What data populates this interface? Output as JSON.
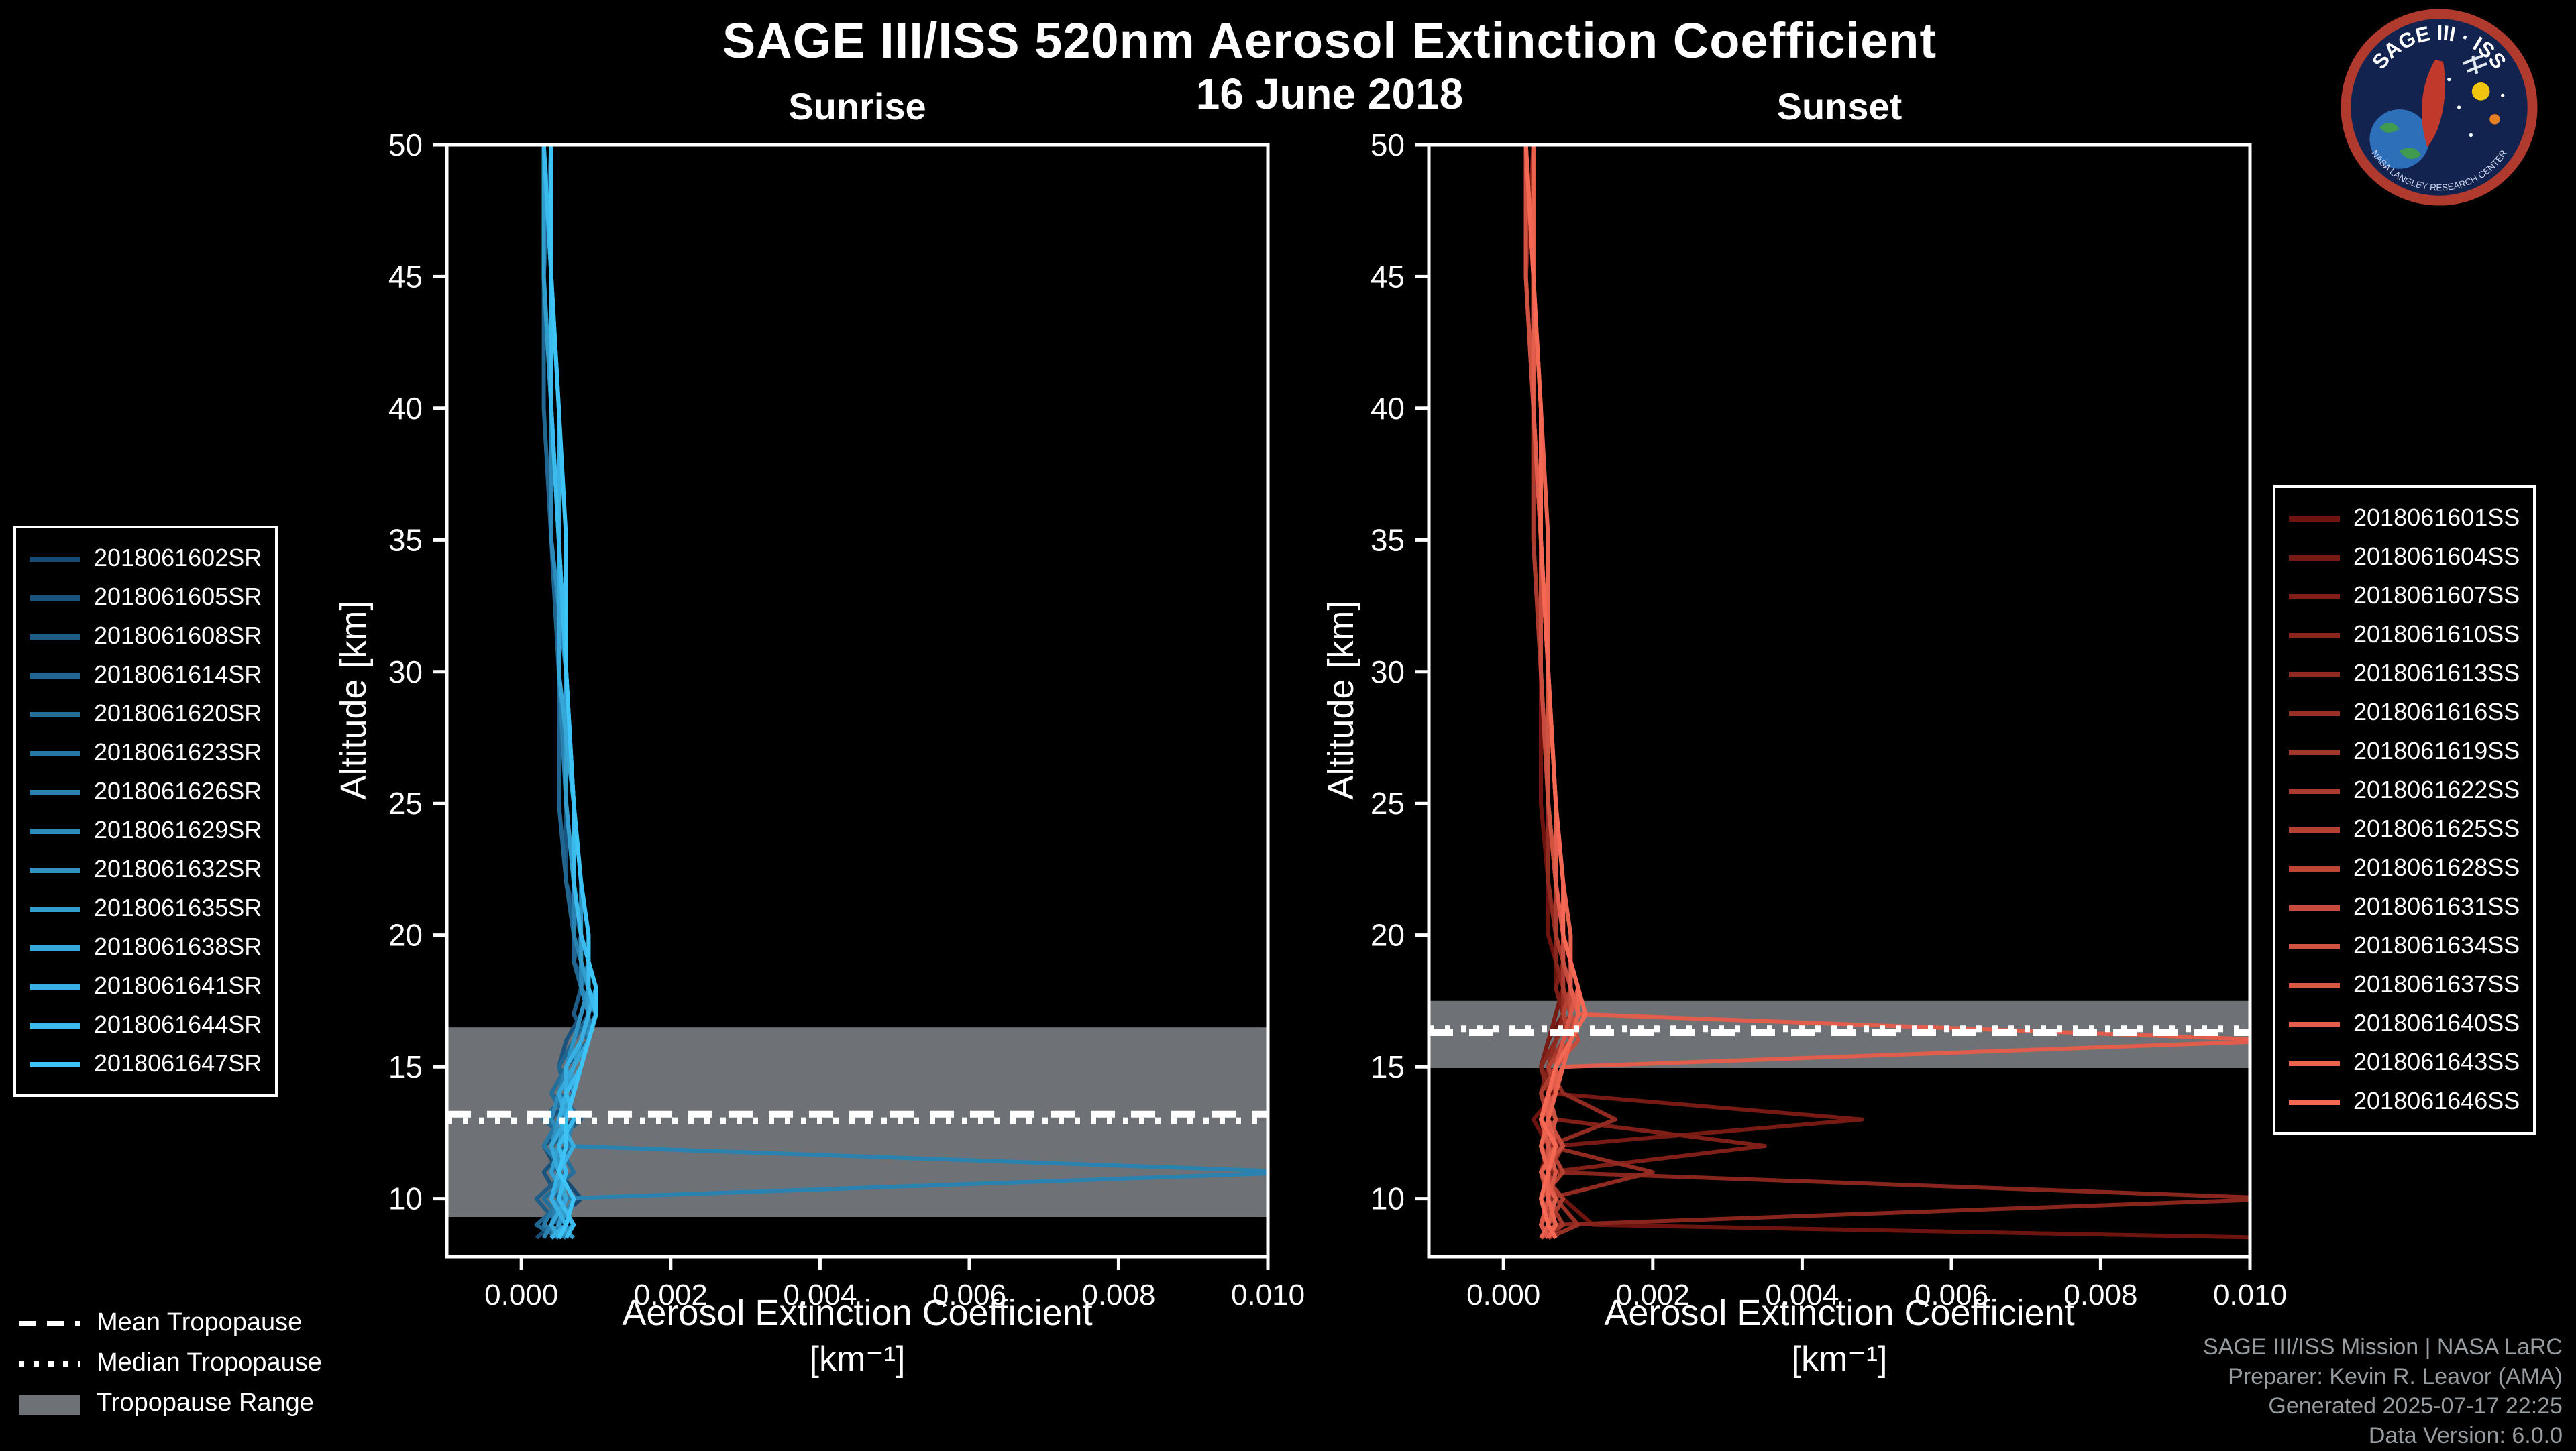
{
  "header": {
    "title": "SAGE III/ISS 520nm Aerosol Extinction Coefficient",
    "date": "16 June 2018"
  },
  "logo": {
    "title": "SAGE III · ISS",
    "subtitle": "NASA LANGLEY RESEARCH CENTER"
  },
  "tropopause_legend": {
    "mean": "Mean Tropopause",
    "median": "Median Tropopause",
    "range": "Tropopause Range"
  },
  "credits": {
    "line1": "SAGE III/ISS Mission | NASA LaRC",
    "line2": "Preparer: Kevin R. Leavor (AMA)",
    "line3": "Generated 2025-07-17 22:25",
    "line4": "Data Version: 6.0.0"
  },
  "chart_data": {
    "type": "line",
    "xlabel": "Aerosol Extinction Coefficient",
    "xunit": "[km⁻¹]",
    "ylabel": "Altitude [km]",
    "xlim": [
      -0.001,
      0.01
    ],
    "ylim": [
      7.8,
      50
    ],
    "xticks": [
      "0.000",
      "0.002",
      "0.004",
      "0.006",
      "0.008",
      "0.010"
    ],
    "yticks": [
      10,
      15,
      20,
      25,
      30,
      35,
      40,
      45,
      50
    ],
    "band_color": "#6e7276",
    "tropopause_line_color": "#ffffff",
    "value_scale": 0.0001,
    "altitudes_km": [
      50,
      45,
      40,
      35,
      30,
      25,
      22,
      20,
      19,
      18,
      17,
      16,
      15,
      14,
      13,
      12,
      11,
      10,
      9,
      8.5
    ],
    "panels": [
      {
        "id": "sunrise",
        "title": "Sunrise",
        "tropopause": {
          "mean_km": 13.2,
          "median_km": 12.95,
          "range_km": [
            9.3,
            16.5
          ]
        },
        "series": [
          {
            "name": "2018061602SR",
            "color": "#174a73",
            "values": [
              3,
              3,
              4,
              4,
              5,
              6,
              7,
              7,
              8,
              8,
              9,
              8,
              6,
              4,
              7,
              3,
              5,
              8,
              4,
              2
            ]
          },
          {
            "name": "2018061605SR",
            "color": "#1a537d",
            "values": [
              3,
              4,
              4,
              5,
              5,
              6,
              6,
              8,
              7,
              9,
              8,
              6,
              5,
              7,
              4,
              6,
              3,
              5,
              7,
              4
            ]
          },
          {
            "name": "2018061608SR",
            "color": "#1d5d87",
            "values": [
              4,
              3,
              4,
              4,
              6,
              6,
              7,
              7,
              8,
              8,
              7,
              9,
              6,
              5,
              8,
              4,
              6,
              2,
              5,
              6
            ]
          },
          {
            "name": "2018061614SR",
            "color": "#206691",
            "values": [
              3,
              3,
              3,
              4,
              5,
              5,
              6,
              7,
              7,
              8,
              9,
              7,
              5,
              6,
              3,
              7,
              4,
              6,
              2,
              5
            ]
          },
          {
            "name": "2018061620SR",
            "color": "#236f9c",
            "values": [
              3,
              4,
              4,
              5,
              6,
              6,
              7,
              8,
              8,
              9,
              8,
              7,
              6,
              4,
              6,
              5,
              7,
              3,
              6,
              4
            ]
          },
          {
            "name": "2018061623SR",
            "color": "#2679a6",
            "values": [
              4,
              4,
              5,
              5,
              6,
              7,
              7,
              8,
              9,
              8,
              10,
              8,
              7,
              6,
              5,
              3,
              6,
              5,
              3,
              6
            ]
          },
          {
            "name": "2018061626SR",
            "color": "#2982b0",
            "values": [
              3,
              3,
              4,
              5,
              5,
              6,
              7,
              7,
              8,
              9,
              9,
              8,
              6,
              5,
              7,
              6,
              105,
              5,
              4,
              3
            ]
          },
          {
            "name": "2018061629SR",
            "color": "#2c8bba",
            "values": [
              3,
              4,
              4,
              4,
              6,
              6,
              7,
              8,
              8,
              8,
              9,
              9,
              7,
              5,
              4,
              6,
              5,
              7,
              5,
              4
            ]
          },
          {
            "name": "2018061632SR",
            "color": "#2f94c4",
            "values": [
              4,
              4,
              5,
              5,
              6,
              7,
              8,
              8,
              9,
              9,
              8,
              7,
              6,
              7,
              5,
              4,
              6,
              4,
              7,
              5
            ]
          },
          {
            "name": "2018061635SR",
            "color": "#329ece",
            "values": [
              3,
              3,
              4,
              5,
              6,
              6,
              7,
              8,
              8,
              9,
              9,
              8,
              7,
              6,
              6,
              5,
              4,
              6,
              5,
              7
            ]
          },
          {
            "name": "2018061638SR",
            "color": "#35a7d9",
            "values": [
              3,
              4,
              4,
              5,
              5,
              7,
              7,
              8,
              9,
              9,
              10,
              9,
              7,
              5,
              6,
              4,
              5,
              6,
              4,
              5
            ]
          },
          {
            "name": "2018061641SR",
            "color": "#38b0e3",
            "values": [
              4,
              4,
              5,
              5,
              6,
              7,
              8,
              9,
              9,
              10,
              9,
              8,
              6,
              6,
              5,
              7,
              5,
              4,
              6,
              4
            ]
          },
          {
            "name": "2018061644SR",
            "color": "#3bbaed",
            "values": [
              3,
              4,
              4,
              5,
              6,
              7,
              7,
              8,
              9,
              9,
              10,
              9,
              8,
              6,
              7,
              5,
              6,
              5,
              7,
              6
            ]
          },
          {
            "name": "2018061647SR",
            "color": "#3ec3f7",
            "values": [
              4,
              4,
              5,
              6,
              6,
              7,
              8,
              9,
              9,
              10,
              10,
              9,
              8,
              7,
              6,
              6,
              5,
              7,
              6,
              5
            ]
          }
        ]
      },
      {
        "id": "sunset",
        "title": "Sunset",
        "tropopause": {
          "mean_km": 16.3,
          "median_km": 16.45,
          "range_km": [
            14.95,
            17.5
          ]
        },
        "series": [
          {
            "name": "2018061601SS",
            "color": "#6d140e",
            "values": [
              3,
              3,
              4,
              4,
              5,
              5,
              6,
              6,
              7,
              7,
              8,
              6,
              5,
              7,
              4,
              6,
              5,
              8,
              12,
              105
            ]
          },
          {
            "name": "2018061604SS",
            "color": "#761a13",
            "values": [
              3,
              3,
              4,
              4,
              5,
              6,
              6,
              7,
              7,
              8,
              7,
              6,
              5,
              6,
              48,
              7,
              5,
              6,
              8,
              6
            ]
          },
          {
            "name": "2018061607SS",
            "color": "#7f1f17",
            "values": [
              4,
              3,
              4,
              5,
              5,
              6,
              6,
              7,
              8,
              7,
              8,
              7,
              6,
              5,
              7,
              35,
              6,
              5,
              7,
              5
            ]
          },
          {
            "name": "2018061610SS",
            "color": "#88251c",
            "values": [
              3,
              4,
              4,
              4,
              5,
              6,
              7,
              7,
              7,
              8,
              8,
              7,
              5,
              6,
              5,
              7,
              6,
              105,
              7,
              6
            ]
          },
          {
            "name": "2018061613SS",
            "color": "#912a21",
            "values": [
              3,
              3,
              4,
              5,
              5,
              6,
              6,
              7,
              8,
              8,
              9,
              7,
              6,
              8,
              15,
              6,
              20,
              6,
              5,
              7
            ]
          },
          {
            "name": "2018061616SS",
            "color": "#9a3025",
            "values": [
              3,
              4,
              4,
              5,
              6,
              6,
              7,
              7,
              8,
              8,
              8,
              9,
              7,
              6,
              5,
              8,
              6,
              7,
              10,
              6
            ]
          },
          {
            "name": "2018061619SS",
            "color": "#a3362a",
            "values": [
              4,
              4,
              4,
              5,
              5,
              6,
              7,
              8,
              8,
              9,
              9,
              8,
              6,
              7,
              6,
              5,
              7,
              6,
              8,
              5
            ]
          },
          {
            "name": "2018061622SS",
            "color": "#ac3b2f",
            "values": [
              3,
              3,
              4,
              4,
              5,
              6,
              7,
              7,
              8,
              8,
              9,
              8,
              7,
              5,
              6,
              7,
              5,
              8,
              6,
              7
            ]
          },
          {
            "name": "2018061625SS",
            "color": "#b54133",
            "values": [
              3,
              4,
              4,
              5,
              6,
              6,
              7,
              8,
              8,
              9,
              8,
              9,
              6,
              7,
              5,
              6,
              8,
              5,
              7,
              6
            ]
          },
          {
            "name": "2018061628SS",
            "color": "#be4638",
            "values": [
              4,
              4,
              5,
              5,
              6,
              7,
              7,
              8,
              9,
              9,
              10,
              8,
              7,
              6,
              7,
              5,
              6,
              7,
              5,
              6
            ]
          },
          {
            "name": "2018061631SS",
            "color": "#c74c3d",
            "values": [
              3,
              4,
              4,
              5,
              5,
              6,
              7,
              8,
              8,
              9,
              9,
              10,
              7,
              6,
              6,
              8,
              5,
              6,
              7,
              5
            ]
          },
          {
            "name": "2018061634SS",
            "color": "#d05241",
            "values": [
              3,
              3,
              4,
              5,
              6,
              6,
              7,
              8,
              9,
              9,
              10,
              9,
              8,
              6,
              7,
              6,
              6,
              5,
              6,
              7
            ]
          },
          {
            "name": "2018061637SS",
            "color": "#d95746",
            "values": [
              4,
              4,
              5,
              5,
              6,
              7,
              8,
              8,
              9,
              10,
              9,
              8,
              7,
              7,
              5,
              6,
              7,
              6,
              5,
              6
            ]
          },
          {
            "name": "2018061640SS",
            "color": "#e25d4b",
            "values": [
              3,
              4,
              4,
              5,
              6,
              7,
              7,
              8,
              9,
              9,
              10,
              105,
              8,
              6,
              6,
              7,
              5,
              7,
              6,
              5
            ]
          },
          {
            "name": "2018061643SS",
            "color": "#eb624f",
            "values": [
              4,
              4,
              5,
              6,
              6,
              7,
              8,
              9,
              9,
              10,
              10,
              9,
              8,
              7,
              6,
              5,
              6,
              6,
              7,
              6
            ]
          },
          {
            "name": "2018061646SS",
            "color": "#f46854",
            "values": [
              3,
              4,
              5,
              5,
              6,
              7,
              8,
              8,
              9,
              10,
              11,
              9,
              7,
              6,
              5,
              7,
              6,
              5,
              6,
              7
            ]
          }
        ]
      }
    ]
  }
}
